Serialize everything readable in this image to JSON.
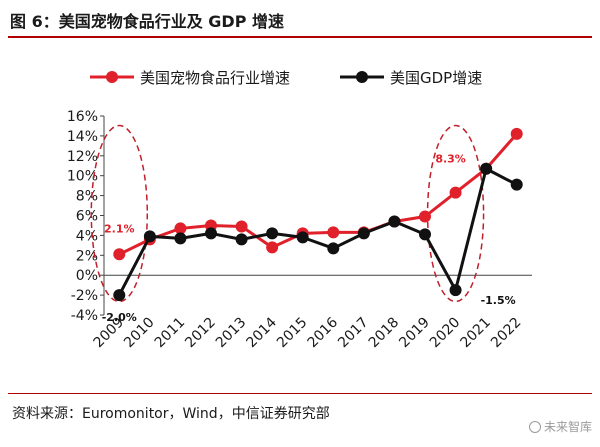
{
  "header": {
    "title": "图 6：美国宠物食品行业及 GDP 增速"
  },
  "footer": {
    "source": "资料来源：Euromonitor，Wind，中信证券研究部",
    "watermark": "未来智库"
  },
  "colors": {
    "rule": "#b00000",
    "series_pet": "#e0202a",
    "series_gdp": "#111111",
    "highlight_ellipse": "#c0202a"
  },
  "chart_data": {
    "type": "line",
    "title": "",
    "xlabel": "",
    "ylabel": "",
    "categories": [
      "2009",
      "2010",
      "2011",
      "2012",
      "2013",
      "2014",
      "2015",
      "2016",
      "2017",
      "2018",
      "2019",
      "2020",
      "2021",
      "2022"
    ],
    "ylim": [
      -4,
      16
    ],
    "yticks": [
      -4,
      -2,
      0,
      2,
      4,
      6,
      8,
      10,
      12,
      14,
      16
    ],
    "ytick_labels": [
      "-4%",
      "-2%",
      "0%",
      "2%",
      "4%",
      "6%",
      "8%",
      "10%",
      "12%",
      "14%",
      "16%"
    ],
    "grid": false,
    "legend_position": "top",
    "series": [
      {
        "name": "美国宠物食品行业增速",
        "color": "#e0202a",
        "values": [
          2.1,
          3.6,
          4.7,
          5.0,
          4.9,
          2.8,
          4.2,
          4.3,
          4.3,
          5.4,
          5.9,
          8.3,
          10.7,
          14.2
        ]
      },
      {
        "name": "美国GDP增速",
        "color": "#111111",
        "values": [
          -2.0,
          3.9,
          3.7,
          4.2,
          3.6,
          4.2,
          3.8,
          2.7,
          4.2,
          5.4,
          4.1,
          -1.5,
          10.7,
          9.1
        ]
      }
    ],
    "annotations": [
      {
        "text": "2.1%",
        "category": "2009",
        "value": 2.1,
        "color": "#e0202a"
      },
      {
        "text": "-2.0%",
        "category": "2009",
        "value": -2.0,
        "color": "#111111"
      },
      {
        "text": "8.3%",
        "category": "2020",
        "value": 8.3,
        "color": "#e0202a"
      },
      {
        "text": "-1.5%",
        "category": "2020",
        "value": -1.5,
        "color": "#111111"
      }
    ],
    "highlights": [
      {
        "category": "2009",
        "style": "dashed-ellipse"
      },
      {
        "category": "2020",
        "style": "dashed-ellipse"
      }
    ]
  }
}
